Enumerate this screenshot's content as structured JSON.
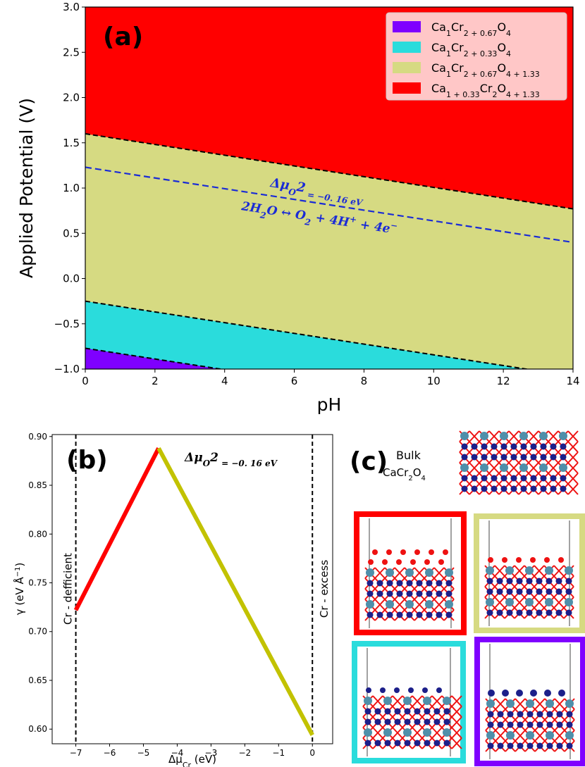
{
  "chart_data": [
    {
      "type": "area",
      "panel_label": "(a)",
      "xlabel": "pH",
      "ylabel": "Applied Potential (V)",
      "xlim": [
        0,
        14
      ],
      "ylim": [
        -1.0,
        3.0
      ],
      "xticks": [
        "0",
        "2",
        "4",
        "6",
        "8",
        "10",
        "12",
        "14"
      ],
      "yticks": [
        "−1.0",
        "−0.5",
        "0.0",
        "0.5",
        "1.0",
        "1.5",
        "2.0",
        "2.5",
        "3.0"
      ],
      "legend_position": "upper right",
      "series": [
        {
          "name": "Ca1Cr2+0.67O4",
          "color": "#7f00ff",
          "boundary": {
            "v_at_ph0": -0.77,
            "v_at_ph14": -1.6
          }
        },
        {
          "name": "Ca1Cr2+0.33O4",
          "color": "#2adcdc",
          "boundary": {
            "v_at_ph0": -0.25,
            "v_at_ph14": -1.08
          }
        },
        {
          "name": "Ca1Cr2+0.67O4+1.33",
          "color": "#d6da82",
          "boundary": {
            "v_at_ph0": 1.6,
            "v_at_ph14": 0.77
          }
        },
        {
          "name": "Ca1+0.33Cr2O4+1.33",
          "color": "#ff0000"
        }
      ],
      "legend": [
        {
          "parts": [
            [
              "Ca",
              "n"
            ],
            [
              "1",
              "sub"
            ],
            [
              "Cr",
              "n"
            ],
            [
              "2 + 0.67",
              "sub"
            ],
            [
              "O",
              "n"
            ],
            [
              "4",
              "sub"
            ]
          ]
        },
        {
          "parts": [
            [
              "Ca",
              "n"
            ],
            [
              "1",
              "sub"
            ],
            [
              "Cr",
              "n"
            ],
            [
              "2 + 0.33",
              "sub"
            ],
            [
              "O",
              "n"
            ],
            [
              "4",
              "sub"
            ]
          ]
        },
        {
          "parts": [
            [
              "Ca",
              "n"
            ],
            [
              "1",
              "sub"
            ],
            [
              "Cr",
              "n"
            ],
            [
              "2 + 0.67",
              "sub"
            ],
            [
              "O",
              "n"
            ],
            [
              "4 + 1.33",
              "sub"
            ]
          ]
        },
        {
          "parts": [
            [
              "Ca",
              "n"
            ],
            [
              "1 + 0.33",
              "sub"
            ],
            [
              "Cr",
              "n"
            ],
            [
              "2",
              "sub"
            ],
            [
              "O",
              "n"
            ],
            [
              "4 + 1.33",
              "sub"
            ]
          ]
        }
      ],
      "water_line": {
        "v_at_ph0": 1.23,
        "v_at_ph14": 0.4,
        "color": "#1a2bd6"
      },
      "annotation_line1": [
        "Δμ",
        "O",
        "2",
        " = −0. 16 eV"
      ],
      "annotation_line2": [
        "2H",
        "2",
        "O ↔ O",
        "2",
        " + 4H",
        "+",
        " + 4e",
        "−"
      ]
    },
    {
      "type": "line",
      "panel_label": "(b)",
      "xlabel": [
        "Δμ",
        "Cr",
        " (eV)"
      ],
      "ylabel": [
        "γ (eV Å",
        "−1",
        ")"
      ],
      "xlim": [
        -7.7,
        0.6
      ],
      "ylim": [
        0.585,
        0.902
      ],
      "xticks": [
        {
          "value": -7,
          "label": "−7"
        },
        {
          "value": -6,
          "label": "−6"
        },
        {
          "value": -5,
          "label": "−5"
        },
        {
          "value": -4,
          "label": "−4"
        },
        {
          "value": -3,
          "label": "−3"
        },
        {
          "value": -2,
          "label": "−2"
        },
        {
          "value": -1,
          "label": "−1"
        },
        {
          "value": 0,
          "label": "0"
        }
      ],
      "yticks": [
        {
          "value": 0.6,
          "label": "0.60"
        },
        {
          "value": 0.65,
          "label": "0.65"
        },
        {
          "value": 0.7,
          "label": "0.70"
        },
        {
          "value": 0.75,
          "label": "0.75"
        },
        {
          "value": 0.8,
          "label": "0.80"
        },
        {
          "value": 0.85,
          "label": "0.85"
        },
        {
          "value": 0.9,
          "label": "0.90"
        }
      ],
      "series": [
        {
          "color": "#ff0000",
          "x": [
            -7.0,
            -4.55
          ],
          "y": [
            0.722,
            0.888
          ]
        },
        {
          "color": "#c2c200",
          "x": [
            -4.55,
            0.0
          ],
          "y": [
            0.888,
            0.594
          ]
        }
      ],
      "vlines": [
        {
          "x": -7.0,
          "label": "Cr - defficient"
        },
        {
          "x": 0.0,
          "label": "Cr - excess"
        }
      ],
      "annotation": [
        "Δμ",
        "O",
        "2",
        " = −0. 16 eV"
      ]
    }
  ],
  "panel_c": {
    "label": "(c)",
    "bulk_title": "Bulk",
    "bulk_formula": [
      "CaCr",
      "2",
      "O",
      "4"
    ],
    "frames": [
      {
        "color": "#ff0000",
        "top": "red-o"
      },
      {
        "color": "#d6da82",
        "top": "red-o-flat"
      },
      {
        "color": "#2adcdc",
        "top": "blue-flat"
      },
      {
        "color": "#7f00ff",
        "top": "blue-balls"
      }
    ]
  }
}
